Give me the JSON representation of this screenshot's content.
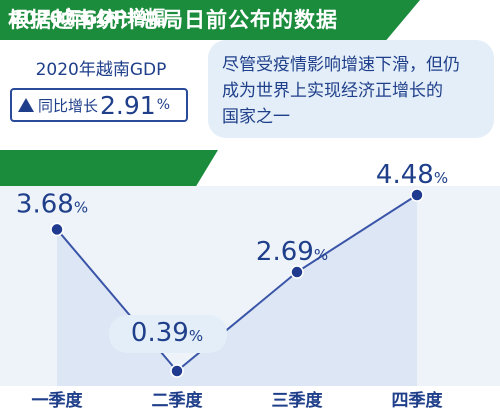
{
  "header": {
    "title": "根据越南统计总局日前公布的数据"
  },
  "stat": {
    "label": "2020年越南GDP",
    "change_label": "同比增长",
    "change_value": "2.91",
    "change_unit": "%"
  },
  "note": {
    "lines": [
      "尽管受疫情影响增速下滑，但仍",
      "成为世界上实现经济正增长的",
      "国家之一"
    ]
  },
  "chart_header": {
    "title": "2020年GDP增幅"
  },
  "colors": {
    "brand_green": "#1a8c3c",
    "text_blue": "#1f3f8a",
    "line": "#3a55a8",
    "area": "#dde6f4"
  },
  "chart_data": {
    "type": "line",
    "title": "2020年GDP增幅",
    "categories": [
      "一季度",
      "二季度",
      "三季度",
      "四季度"
    ],
    "values": [
      3.68,
      0.39,
      2.69,
      4.48
    ],
    "data_labels": [
      "3.68",
      "0.39",
      "2.69",
      "4.48"
    ],
    "unit": "%",
    "ylim": [
      0,
      5
    ],
    "grid": false,
    "legend": "none"
  }
}
